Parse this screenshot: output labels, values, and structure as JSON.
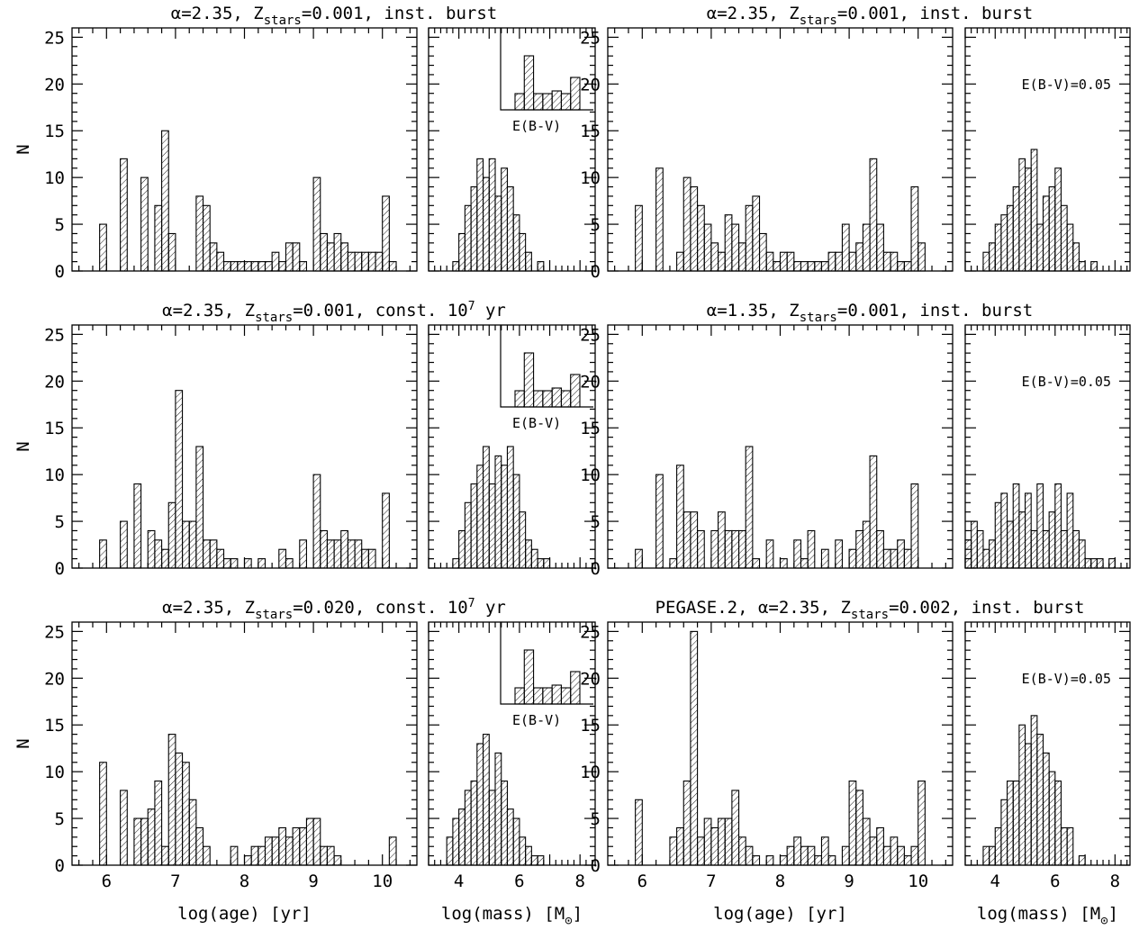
{
  "figure": {
    "ylabel": "N",
    "xlabel_age": "log(age) [yr]",
    "xlabel_mass_main": "log(mass) [M",
    "xlabel_mass_sub": "⊙",
    "xlabel_mass_close": "]",
    "ebv_label": "E(B-V)",
    "ebv_value_label": "E(B-V)=0.05"
  },
  "panels": [
    {
      "title": "α=2.35, Z",
      "title_sub": "stars",
      "title_rest": "=0.001, inst. burst",
      "title_sup": ""
    },
    {
      "title": "α=2.35, Z",
      "title_sub": "stars",
      "title_rest": "=0.001, inst. burst",
      "title_sup": ""
    },
    {
      "title": "α=2.35, Z",
      "title_sub": "stars",
      "title_rest": "=0.001, const. 10",
      "title_sup": "7",
      "title_end": " yr"
    },
    {
      "title": "α=1.35, Z",
      "title_sub": "stars",
      "title_rest": "=0.001, inst. burst",
      "title_sup": ""
    },
    {
      "title": "α=2.35, Z",
      "title_sub": "stars",
      "title_rest": "=0.020, const. 10",
      "title_sup": "7",
      "title_end": " yr"
    },
    {
      "title": "PEGASE.2, α=2.35, Z",
      "title_sub": "stars",
      "title_rest": "=0.002, inst. burst",
      "title_sup": ""
    }
  ],
  "chart_data": [
    {
      "type": "bar",
      "panel": "row1-left-age",
      "xlabel": "log(age) [yr]",
      "ylabel": "N",
      "xlim": [
        5.5,
        10.5
      ],
      "ylim": [
        0,
        26
      ],
      "bin_width": 0.1,
      "bin_starts": [
        5.9,
        6.2,
        6.5,
        6.7,
        6.8,
        6.9,
        7.3,
        7.4,
        7.5,
        7.6,
        7.7,
        7.8,
        7.9,
        8.0,
        8.1,
        8.2,
        8.3,
        8.4,
        8.5,
        8.6,
        8.7,
        8.8,
        9.0,
        9.1,
        9.2,
        9.3,
        9.4,
        9.5,
        9.6,
        9.7,
        9.8,
        9.9,
        10.0,
        10.1
      ],
      "values": [
        5,
        12,
        10,
        7,
        15,
        4,
        8,
        7,
        3,
        2,
        1,
        1,
        1,
        1,
        1,
        1,
        1,
        2,
        1,
        3,
        3,
        1,
        10,
        4,
        3,
        4,
        3,
        2,
        2,
        2,
        2,
        2,
        8,
        1
      ]
    },
    {
      "type": "bar",
      "panel": "row1-left-mass",
      "xlabel": "log(mass) [M⊙]",
      "xlim": [
        3,
        8.5
      ],
      "ylim": [
        0,
        26
      ],
      "bin_width": 0.2,
      "bin_starts": [
        3.8,
        4.0,
        4.2,
        4.4,
        4.6,
        4.8,
        5.0,
        5.2,
        5.4,
        5.6,
        5.8,
        6.0,
        6.2,
        6.4,
        6.6
      ],
      "values": [
        1,
        4,
        7,
        9,
        12,
        10,
        12,
        8,
        11,
        9,
        6,
        4,
        2,
        0,
        1
      ],
      "inset": {
        "label": "E(B-V)",
        "bin_starts": [
          0.0,
          0.05,
          0.1,
          0.15,
          0.2,
          0.25,
          0.3
        ],
        "values": [
          0.3,
          1.0,
          0.3,
          0.3,
          0.35,
          0.3,
          0.6
        ]
      }
    },
    {
      "type": "bar",
      "panel": "row1-right-age",
      "xlabel": "log(age) [yr]",
      "xlim": [
        5.5,
        10.5
      ],
      "ylim": [
        0,
        26
      ],
      "bin_width": 0.1,
      "bin_starts": [
        5.9,
        6.2,
        6.5,
        6.6,
        6.7,
        6.8,
        6.9,
        7.0,
        7.1,
        7.2,
        7.3,
        7.4,
        7.5,
        7.6,
        7.7,
        7.8,
        7.9,
        8.0,
        8.1,
        8.2,
        8.3,
        8.4,
        8.5,
        8.6,
        8.7,
        8.8,
        8.9,
        9.0,
        9.1,
        9.2,
        9.3,
        9.4,
        9.5,
        9.6,
        9.7,
        9.8,
        9.9,
        10.0
      ],
      "values": [
        7,
        11,
        2,
        10,
        9,
        7,
        5,
        3,
        2,
        6,
        5,
        3,
        7,
        8,
        4,
        2,
        1,
        2,
        2,
        1,
        1,
        1,
        1,
        1,
        2,
        2,
        5,
        2,
        3,
        5,
        12,
        5,
        2,
        2,
        1,
        1,
        9,
        3
      ]
    },
    {
      "type": "bar",
      "panel": "row1-right-mass",
      "xlabel": "log(mass) [M⊙]",
      "xlim": [
        3,
        8.5
      ],
      "ylim": [
        0,
        26
      ],
      "bin_width": 0.2,
      "bin_starts": [
        3.6,
        3.8,
        4.0,
        4.2,
        4.4,
        4.6,
        4.8,
        5.0,
        5.2,
        5.4,
        5.6,
        5.8,
        6.0,
        6.2,
        6.4,
        6.6,
        6.8,
        7.0,
        7.2
      ],
      "values": [
        2,
        3,
        5,
        6,
        7,
        9,
        12,
        11,
        13,
        5,
        8,
        9,
        11,
        7,
        5,
        3,
        1,
        0,
        1
      ],
      "annotation": "E(B-V)=0.05"
    },
    {
      "type": "bar",
      "panel": "row2-left-age",
      "xlabel": "log(age) [yr]",
      "ylabel": "N",
      "xlim": [
        5.5,
        10.5
      ],
      "ylim": [
        0,
        26
      ],
      "bin_width": 0.1,
      "bin_starts": [
        5.9,
        6.2,
        6.4,
        6.6,
        6.7,
        6.8,
        6.9,
        7.0,
        7.1,
        7.2,
        7.3,
        7.4,
        7.5,
        7.6,
        7.7,
        7.8,
        8.0,
        8.2,
        8.5,
        8.6,
        8.8,
        9.0,
        9.1,
        9.2,
        9.3,
        9.4,
        9.5,
        9.6,
        9.7,
        9.8,
        10.0
      ],
      "values": [
        3,
        5,
        9,
        4,
        3,
        2,
        7,
        19,
        5,
        5,
        13,
        3,
        3,
        2,
        1,
        1,
        1,
        1,
        2,
        1,
        3,
        10,
        4,
        3,
        3,
        4,
        3,
        3,
        2,
        2,
        8
      ]
    },
    {
      "type": "bar",
      "panel": "row2-left-mass",
      "xlabel": "log(mass) [M⊙]",
      "xlim": [
        3,
        8.5
      ],
      "ylim": [
        0,
        26
      ],
      "bin_width": 0.2,
      "bin_starts": [
        3.8,
        4.0,
        4.2,
        4.4,
        4.6,
        4.8,
        5.0,
        5.2,
        5.4,
        5.6,
        5.8,
        6.0,
        6.2,
        6.4,
        6.6,
        6.8
      ],
      "values": [
        1,
        4,
        7,
        9,
        11,
        13,
        9,
        12,
        11,
        13,
        10,
        6,
        3,
        2,
        1,
        1
      ],
      "inset": {
        "label": "E(B-V)",
        "bin_starts": [
          0.0,
          0.05,
          0.1,
          0.15,
          0.2,
          0.25,
          0.3
        ],
        "values": [
          0.3,
          1.0,
          0.3,
          0.3,
          0.35,
          0.3,
          0.6
        ]
      }
    },
    {
      "type": "bar",
      "panel": "row2-right-age",
      "xlabel": "log(age) [yr]",
      "xlim": [
        5.5,
        10.5
      ],
      "ylim": [
        0,
        26
      ],
      "bin_width": 0.1,
      "bin_starts": [
        5.9,
        6.2,
        6.4,
        6.5,
        6.6,
        6.7,
        6.8,
        7.0,
        7.1,
        7.2,
        7.3,
        7.4,
        7.5,
        7.6,
        7.8,
        8.0,
        8.2,
        8.3,
        8.4,
        8.6,
        8.8,
        9.0,
        9.1,
        9.2,
        9.3,
        9.4,
        9.5,
        9.6,
        9.7,
        9.8,
        9.9
      ],
      "values": [
        2,
        10,
        1,
        11,
        6,
        6,
        4,
        4,
        6,
        4,
        4,
        4,
        13,
        1,
        3,
        1,
        3,
        1,
        4,
        2,
        3,
        2,
        4,
        5,
        12,
        4,
        2,
        2,
        3,
        2,
        9
      ]
    },
    {
      "type": "bar",
      "panel": "row2-right-mass",
      "xlabel": "log(mass) [M⊙]",
      "xlim": [
        3,
        8.5
      ],
      "ylim": [
        0,
        26
      ],
      "bin_width": 0.2,
      "bin_starts": [
        3.0,
        3.2,
        3.4,
        3.6,
        3.8,
        4.0,
        4.2,
        4.4,
        4.6,
        4.8,
        5.0,
        5.2,
        5.4,
        5.6,
        5.8,
        6.0,
        6.2,
        6.4,
        6.6,
        6.8,
        7.0,
        7.2,
        7.4,
        7.6,
        7.8
      ],
      "values": [
        3,
        5,
        4,
        2,
        3,
        7,
        8,
        5,
        9,
        6,
        8,
        4,
        9,
        4,
        6,
        9,
        4,
        8,
        4,
        3,
        1,
        1,
        1,
        0,
        1
      ],
      "annotation": "E(B-V)=0.05"
    },
    {
      "type": "bar",
      "panel": "row3-left-age",
      "xlabel": "log(age) [yr]",
      "ylabel": "N",
      "xlim": [
        5.5,
        10.5
      ],
      "ylim": [
        0,
        26
      ],
      "bin_width": 0.1,
      "bin_starts": [
        5.9,
        6.2,
        6.4,
        6.5,
        6.6,
        6.7,
        6.8,
        6.9,
        7.0,
        7.1,
        7.2,
        7.3,
        7.4,
        7.8,
        8.0,
        8.1,
        8.2,
        8.3,
        8.4,
        8.5,
        8.6,
        8.7,
        8.8,
        8.9,
        9.0,
        9.1,
        9.2,
        9.3,
        10.1
      ],
      "values": [
        11,
        8,
        5,
        5,
        6,
        9,
        2,
        14,
        12,
        11,
        7,
        4,
        2,
        2,
        1,
        2,
        2,
        3,
        3,
        4,
        3,
        4,
        4,
        5,
        5,
        2,
        2,
        1,
        3
      ]
    },
    {
      "type": "bar",
      "panel": "row3-left-mass",
      "xlabel": "log(mass) [M⊙]",
      "xlim": [
        3,
        8.5
      ],
      "ylim": [
        0,
        26
      ],
      "bin_width": 0.2,
      "bin_starts": [
        3.6,
        3.8,
        4.0,
        4.2,
        4.4,
        4.6,
        4.8,
        5.0,
        5.2,
        5.4,
        5.6,
        5.8,
        6.0,
        6.2,
        6.4,
        6.6
      ],
      "values": [
        3,
        5,
        6,
        8,
        9,
        13,
        14,
        8,
        12,
        9,
        6,
        5,
        3,
        2,
        1,
        1
      ],
      "inset": {
        "label": "E(B-V)",
        "bin_starts": [
          0.0,
          0.05,
          0.1,
          0.15,
          0.2,
          0.25,
          0.3
        ],
        "values": [
          0.3,
          1.0,
          0.3,
          0.3,
          0.35,
          0.3,
          0.6
        ]
      }
    },
    {
      "type": "bar",
      "panel": "row3-right-age",
      "xlabel": "log(age) [yr]",
      "xlim": [
        5.5,
        10.5
      ],
      "ylim": [
        0,
        26
      ],
      "bin_width": 0.1,
      "bin_starts": [
        5.9,
        6.4,
        6.5,
        6.6,
        6.7,
        6.8,
        6.9,
        7.0,
        7.1,
        7.2,
        7.3,
        7.4,
        7.5,
        7.6,
        7.8,
        8.0,
        8.1,
        8.2,
        8.3,
        8.4,
        8.5,
        8.6,
        8.7,
        8.9,
        9.0,
        9.1,
        9.2,
        9.3,
        9.4,
        9.5,
        9.6,
        9.7,
        9.8,
        9.9,
        10.0
      ],
      "values": [
        7,
        3,
        4,
        9,
        25,
        3,
        5,
        4,
        5,
        5,
        8,
        3,
        2,
        1,
        1,
        1,
        2,
        3,
        2,
        2,
        1,
        3,
        1,
        2,
        9,
        8,
        5,
        3,
        4,
        2,
        3,
        2,
        1,
        2,
        9
      ]
    },
    {
      "type": "bar",
      "panel": "row3-right-mass",
      "xlabel": "log(mass) [M⊙]",
      "xlim": [
        3,
        8.5
      ],
      "ylim": [
        0,
        26
      ],
      "bin_width": 0.2,
      "bin_starts": [
        3.6,
        3.8,
        4.0,
        4.2,
        4.4,
        4.6,
        4.8,
        5.0,
        5.2,
        5.4,
        5.6,
        5.8,
        6.0,
        6.2,
        6.4,
        6.6,
        6.8
      ],
      "values": [
        2,
        2,
        4,
        7,
        9,
        9,
        15,
        13,
        16,
        14,
        12,
        10,
        9,
        4,
        4,
        0,
        1
      ],
      "annotation": "E(B-V)=0.05"
    }
  ]
}
